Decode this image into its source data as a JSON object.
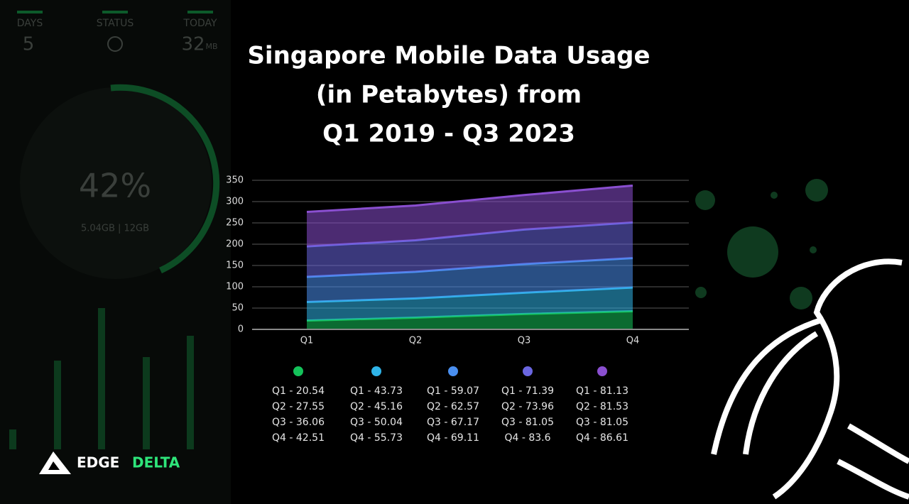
{
  "chart_data": {
    "type": "stacked_area",
    "title": [
      "Singapore Mobile Data Usage",
      "(in Petabytes) from",
      "Q1 2019 - Q3 2023"
    ],
    "categories": [
      "Q1",
      "Q2",
      "Q3",
      "Q4"
    ],
    "ylim": [
      0,
      350
    ],
    "yticks": [
      0,
      50,
      100,
      150,
      200,
      250,
      300,
      350
    ],
    "grid": true,
    "series": [
      {
        "color": "#14c25a",
        "values": [
          20.54,
          27.55,
          36.06,
          42.51
        ],
        "value_labels": [
          "Q1 - 20.54",
          "Q2 - 27.55",
          "Q3 - 36.06",
          "Q4 - 42.51"
        ]
      },
      {
        "color": "#2fb4e8",
        "values": [
          43.73,
          45.16,
          50.04,
          55.73
        ],
        "value_labels": [
          "Q1 - 43.73",
          "Q2 - 45.16",
          "Q3 - 50.04",
          "Q4 - 55.73"
        ]
      },
      {
        "color": "#4a8ff0",
        "values": [
          59.07,
          62.57,
          67.17,
          69.11
        ],
        "value_labels": [
          "Q1 - 59.07",
          "Q2 - 62.57",
          "Q3 - 67.17",
          "Q4 - 69.11"
        ]
      },
      {
        "color": "#6a66e0",
        "values": [
          71.39,
          73.96,
          81.05,
          83.6
        ],
        "value_labels": [
          "Q1 - 71.39",
          "Q2 - 73.96",
          "Q3 - 81.05",
          "Q4 - 83.6"
        ]
      },
      {
        "color": "#8a4fd0",
        "values": [
          81.13,
          81.53,
          81.05,
          86.61
        ],
        "value_labels": [
          "Q1 - 81.13",
          "Q2 - 81.53",
          "Q3 - 81.05",
          "Q4 - 86.61"
        ]
      }
    ]
  },
  "background": {
    "days_label": "DAYS",
    "status_label": "STATUS",
    "today_label": "TODAY",
    "days_value": "5",
    "today_value": "32",
    "today_unit": "MB",
    "percent": "42%",
    "usage": "5.04GB | 12GB",
    "brand": [
      "EDGE",
      "DELTA"
    ]
  }
}
